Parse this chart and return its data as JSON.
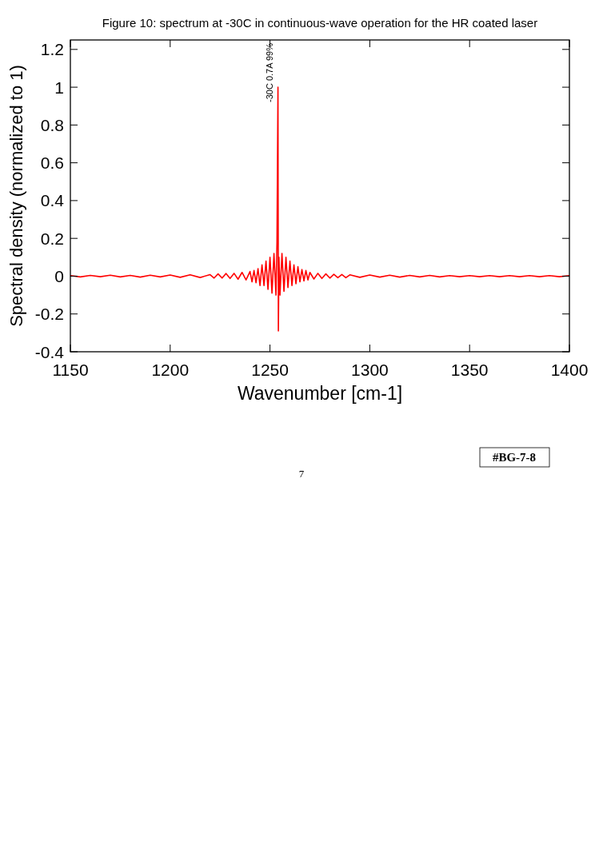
{
  "chart_data": {
    "type": "line",
    "title": "Figure 10: spectrum at -30C in continuous-wave operation for the HR coated laser",
    "xlabel": "Wavenumber [cm-1]",
    "ylabel": "Spectral density (normalized to 1)",
    "xlim": [
      1150,
      1400
    ],
    "xticks": [
      1150,
      1200,
      1250,
      1300,
      1350,
      1400
    ],
    "ylim": [
      -0.4,
      1.25
    ],
    "yticks": [
      -0.4,
      -0.2,
      0,
      0.2,
      0.4,
      0.6,
      0.8,
      1,
      1.2
    ],
    "marker": "none",
    "line_style": "solid",
    "annotations": [
      "-30C 0.7A 99%",
      "7",
      "#BG-7-8"
    ],
    "series": [
      {
        "color": "#ff0000",
        "x": [
          1150,
          1155,
          1160,
          1165,
          1170,
          1175,
          1180,
          1185,
          1190,
          1195,
          1200,
          1205,
          1210,
          1215,
          1220,
          1222,
          1224,
          1226,
          1228,
          1230,
          1232,
          1234,
          1236,
          1238,
          1240,
          1241,
          1242,
          1243,
          1244,
          1245,
          1246,
          1247,
          1248,
          1249,
          1250,
          1251,
          1252,
          1253,
          1253.5,
          1254,
          1254.2,
          1254.5,
          1255,
          1256,
          1257,
          1258,
          1259,
          1260,
          1261,
          1262,
          1263,
          1264,
          1265,
          1266,
          1267,
          1268,
          1269,
          1270,
          1272,
          1274,
          1276,
          1278,
          1280,
          1282,
          1284,
          1286,
          1288,
          1290,
          1295,
          1300,
          1305,
          1310,
          1315,
          1320,
          1325,
          1330,
          1335,
          1340,
          1345,
          1350,
          1355,
          1360,
          1365,
          1370,
          1375,
          1380,
          1385,
          1390,
          1395,
          1400
        ],
        "values": [
          0.003,
          -0.004,
          0.004,
          -0.003,
          0.005,
          -0.004,
          0.004,
          -0.005,
          0.005,
          -0.004,
          0.006,
          -0.006,
          0.007,
          -0.007,
          0.008,
          -0.01,
          0.012,
          -0.01,
          0.014,
          -0.012,
          0.015,
          -0.016,
          0.02,
          -0.02,
          0.025,
          -0.03,
          0.03,
          -0.035,
          0.04,
          -0.05,
          0.06,
          -0.05,
          0.08,
          -0.07,
          0.1,
          -0.09,
          0.12,
          -0.1,
          0.18,
          1.0,
          -0.29,
          0.1,
          -0.1,
          0.12,
          -0.08,
          0.1,
          -0.06,
          0.08,
          -0.05,
          0.06,
          -0.04,
          0.05,
          -0.03,
          0.035,
          -0.025,
          0.03,
          -0.02,
          0.02,
          -0.015,
          0.015,
          -0.012,
          0.012,
          -0.01,
          0.01,
          -0.008,
          0.009,
          -0.008,
          0.007,
          -0.006,
          0.006,
          -0.005,
          0.005,
          -0.005,
          0.004,
          -0.004,
          0.004,
          -0.004,
          0.003,
          -0.003,
          0.003,
          -0.003,
          0.003,
          -0.003,
          0.003,
          -0.003,
          0.003,
          -0.003,
          0.003,
          -0.003,
          0.003
        ]
      }
    ]
  }
}
